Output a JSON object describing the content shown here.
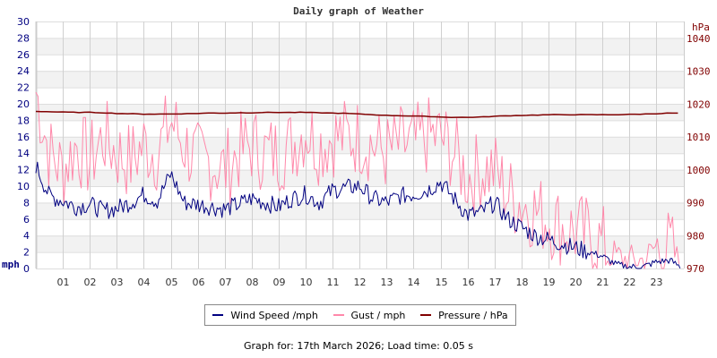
{
  "chart_data": {
    "type": "line",
    "title": "Daily graph of Weather",
    "xlabel": "",
    "ylabel": "mph",
    "ylabel_right": "hPa",
    "ylim": [
      0,
      30
    ],
    "ylim_right": [
      970,
      1045
    ],
    "yticks": [
      0,
      2,
      4,
      6,
      8,
      10,
      12,
      14,
      16,
      18,
      20,
      22,
      24,
      26,
      28,
      30
    ],
    "yticks_right": [
      970,
      980,
      990,
      1000,
      1010,
      1020,
      1030,
      1040
    ],
    "xticks": [
      "01",
      "02",
      "03",
      "04",
      "05",
      "06",
      "07",
      "08",
      "09",
      "10",
      "11",
      "12",
      "13",
      "14",
      "15",
      "16",
      "17",
      "18",
      "19",
      "20",
      "21",
      "22",
      "23"
    ],
    "x_hours": [
      0,
      0.5,
      1,
      1.5,
      2,
      2.5,
      3,
      3.5,
      4,
      4.5,
      5,
      5.5,
      6,
      6.5,
      7,
      7.5,
      8,
      8.5,
      9,
      9.5,
      10,
      10.5,
      11,
      11.5,
      12,
      12.5,
      13,
      13.5,
      14,
      14.5,
      15,
      15.5,
      16,
      16.5,
      17,
      17.5,
      18,
      18.5,
      19,
      19.5,
      20,
      20.5,
      21,
      21.5,
      22,
      22.5,
      23,
      23.5,
      23.9
    ],
    "series": [
      {
        "name": "Wind Speed /mph",
        "color": "#000080",
        "axis": "left",
        "values": [
          12.5,
          8.8,
          8.2,
          7.5,
          7.8,
          7.0,
          7.3,
          8.0,
          9.0,
          8.2,
          11.5,
          8.0,
          7.8,
          7.5,
          7.2,
          7.8,
          8.5,
          8.0,
          7.5,
          8.5,
          9.0,
          8.0,
          9.5,
          9.8,
          10.0,
          8.5,
          8.0,
          8.8,
          9.0,
          9.5,
          10.5,
          8.5,
          6.5,
          6.8,
          8.0,
          6.0,
          5.0,
          4.0,
          3.5,
          3.0,
          2.5,
          2.0,
          1.5,
          0.5,
          0.2,
          0.2,
          0.8,
          1.0,
          0.2
        ]
      },
      {
        "name": "Gust / mph",
        "color": "#ff88aa",
        "axis": "left",
        "values": [
          21.5,
          14,
          12,
          15,
          13,
          16,
          14,
          13,
          15,
          14,
          18,
          15,
          13,
          13,
          12,
          14,
          15,
          14,
          14,
          15,
          17,
          15,
          16,
          16,
          16,
          15,
          14,
          15,
          15,
          16,
          16,
          14,
          11,
          12,
          12,
          9,
          8,
          7,
          6,
          5,
          4.5,
          4,
          3,
          1.5,
          1,
          1,
          2.5,
          2.5,
          0.5
        ]
      },
      {
        "name": "Pressure / hPa",
        "color": "#800000",
        "axis": "right",
        "values": [
          1017.8,
          1017.7,
          1017.6,
          1017.5,
          1017.5,
          1017.4,
          1017.2,
          1017.1,
          1017.0,
          1017.0,
          1017.0,
          1017.1,
          1017.2,
          1017.3,
          1017.3,
          1017.4,
          1017.4,
          1017.5,
          1017.5,
          1017.5,
          1017.5,
          1017.4,
          1017.3,
          1017.2,
          1017.0,
          1016.8,
          1016.6,
          1016.5,
          1016.4,
          1016.3,
          1016.1,
          1016.0,
          1016.0,
          1016.1,
          1016.3,
          1016.5,
          1016.6,
          1016.7,
          1016.8,
          1016.8,
          1016.8,
          1016.8,
          1016.8,
          1016.8,
          1016.9,
          1017.0,
          1017.1,
          1017.3,
          1017.2
        ]
      }
    ],
    "grid": true,
    "legend_position": "bottom"
  },
  "title": "Daily graph of Weather",
  "axis": {
    "left_unit": "mph",
    "right_unit": "hPa"
  },
  "legend": {
    "wind": "Wind Speed /mph",
    "gust": "Gust / mph",
    "pressure": "Pressure / hPa"
  },
  "footer": "Graph for: 17th March 2026; Load time: 0.05 s"
}
